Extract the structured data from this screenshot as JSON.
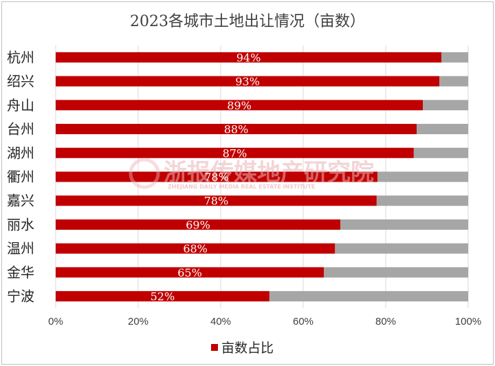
{
  "chart_data": {
    "type": "bar",
    "orientation": "horizontal",
    "stacked": "percent",
    "title": "2023各城市土地出让情况（亩数）",
    "categories": [
      "杭州",
      "绍兴",
      "舟山",
      "台州",
      "湖州",
      "衢州",
      "嘉兴",
      "丽水",
      "温州",
      "金华",
      "宁波"
    ],
    "series": [
      {
        "name": "亩数占比",
        "color": "#c00000",
        "values": [
          0.935,
          0.93,
          0.89,
          0.875,
          0.868,
          0.78,
          0.778,
          0.69,
          0.677,
          0.65,
          0.518
        ],
        "labels": [
          "94%",
          "93%",
          "89%",
          "88%",
          "87%",
          "78%",
          "78%",
          "69%",
          "68%",
          "65%",
          "52%"
        ]
      }
    ],
    "remainder_color": "#a6a6a6",
    "xlim": [
      0,
      1
    ],
    "xticks": [
      "0%",
      "20%",
      "40%",
      "60%",
      "80%",
      "100%"
    ],
    "grid": true,
    "legend": "bottom"
  },
  "watermark": {
    "text": "浙报传媒地产研究院",
    "subtext": "ZHEJIANG DAILY MEDIA REAL ESTATE INSTITUTE"
  }
}
